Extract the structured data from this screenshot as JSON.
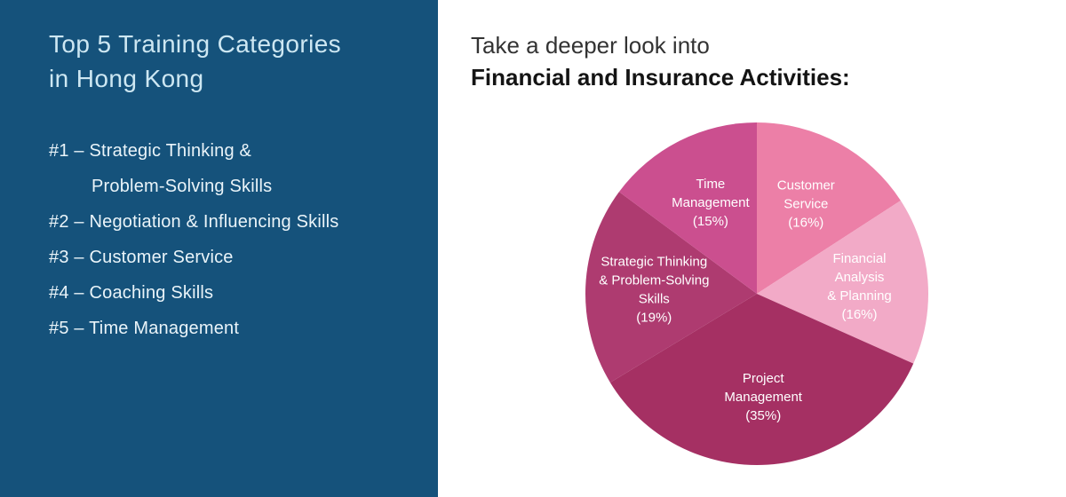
{
  "colors": {
    "left_panel_bg": "#15527b",
    "left_title": "#cde7f2",
    "left_text": "#eaf4f9",
    "heading_intro": "#333333",
    "heading_subject": "#141414",
    "pie_label": "#ffffff"
  },
  "left_panel": {
    "title_line1": "Top 5 Training Categories",
    "title_line2": "in Hong Kong",
    "items": [
      {
        "rank": "#1",
        "line1": "#1 – Strategic Thinking &",
        "line2": "Problem-Solving Skills"
      },
      {
        "rank": "#2",
        "line1": "#2 – Negotiation & Influencing Skills"
      },
      {
        "rank": "#3",
        "line1": "#3 – Customer Service"
      },
      {
        "rank": "#4",
        "line1": "#4 – Coaching Skills"
      },
      {
        "rank": "#5",
        "line1": "#5 – Time Management"
      }
    ]
  },
  "right_panel": {
    "heading_line1": "Take a deeper look into",
    "heading_line2": "Financial and Insurance Activities:"
  },
  "chart_data": {
    "type": "pie",
    "title": "Financial and Insurance Activities: training category breakdown",
    "legend_position": "none",
    "labels_on_slices": true,
    "start_angle_deg": 0,
    "direction": "clockwise",
    "label_color": "#ffffff",
    "slices": [
      {
        "label": "Customer Service",
        "value": 16,
        "percent_text": "(16%)",
        "color": "#ec7fa7",
        "label_lines": [
          "Customer",
          "Service",
          "(16%)"
        ]
      },
      {
        "label": "Financial Analysis & Planning",
        "value": 16,
        "percent_text": "(16%)",
        "color": "#f2aac7",
        "label_lines": [
          "Financial",
          "Analysis",
          "& Planning",
          "(16%)"
        ]
      },
      {
        "label": "Project Management",
        "value": 35,
        "percent_text": "(35%)",
        "color": "#a53063",
        "label_lines": [
          "Project",
          "Management",
          "(35%)"
        ]
      },
      {
        "label": "Strategic Thinking & Problem-Solving Skills",
        "value": 19,
        "percent_text": "(19%)",
        "color": "#ae3b70",
        "label_lines": [
          "Strategic Thinking",
          "& Problem-Solving",
          "Skills",
          "(19%)"
        ]
      },
      {
        "label": "Time Management",
        "value": 15,
        "percent_text": "(15%)",
        "color": "#cb4f8f",
        "label_lines": [
          "Time",
          "Management",
          "(15%)"
        ]
      }
    ]
  }
}
